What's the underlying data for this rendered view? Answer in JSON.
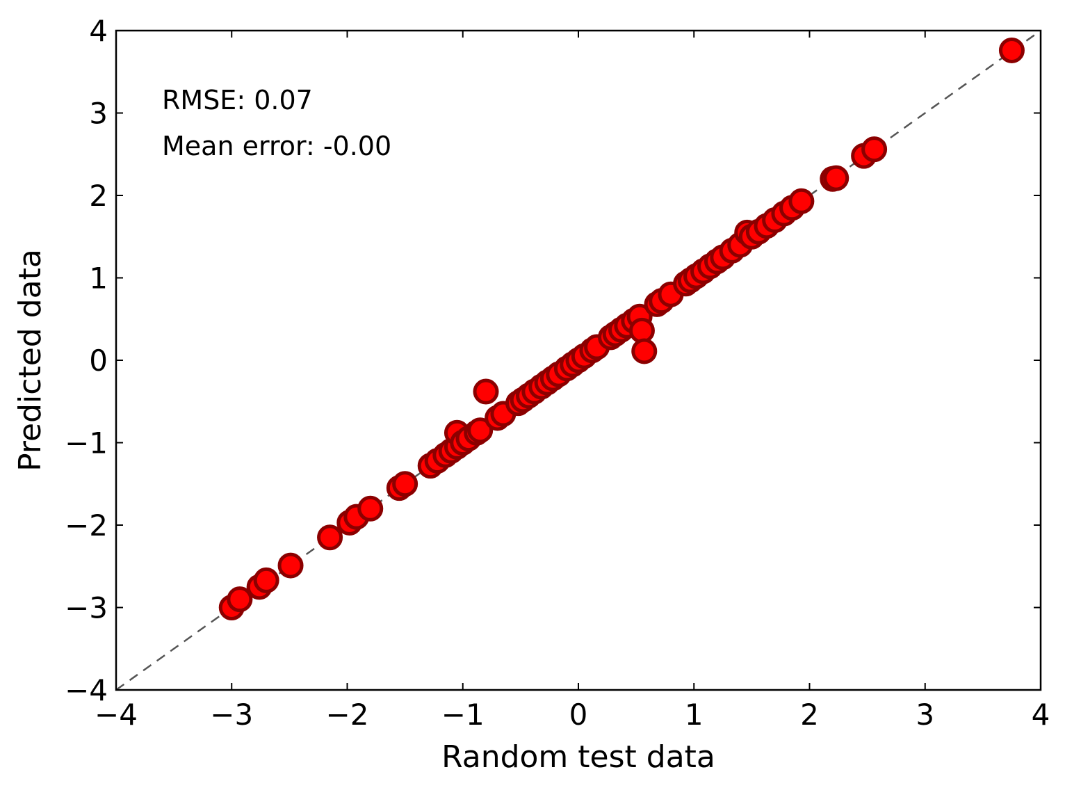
{
  "chart_data": {
    "type": "scatter",
    "xlabel": "Random test data",
    "ylabel": "Predicted data",
    "xlim": [
      -4,
      4
    ],
    "ylim": [
      -4,
      4
    ],
    "xticks": [
      "−4",
      "−3",
      "−2",
      "−1",
      "0",
      "1",
      "2",
      "3",
      "4"
    ],
    "yticks": [
      "−4",
      "−3",
      "−2",
      "−1",
      "0",
      "1",
      "2",
      "3",
      "4"
    ],
    "tick_values": [
      -4,
      -3,
      -2,
      -1,
      0,
      1,
      2,
      3,
      4
    ],
    "grid": false,
    "annotations": [
      "RMSE: 0.07",
      "Mean error: -0.00"
    ],
    "reference_line": {
      "style": "dashed",
      "color": "#555555",
      "from": [
        -4,
        -4
      ],
      "to": [
        4,
        4
      ]
    },
    "marker": {
      "fill": "#ff0000",
      "edge": "#8b0000"
    },
    "points": [
      {
        "x": -3.0,
        "y": -3.0
      },
      {
        "x": -2.93,
        "y": -2.9
      },
      {
        "x": -2.76,
        "y": -2.75
      },
      {
        "x": -2.7,
        "y": -2.67
      },
      {
        "x": -2.49,
        "y": -2.49
      },
      {
        "x": -2.15,
        "y": -2.15
      },
      {
        "x": -1.98,
        "y": -1.97
      },
      {
        "x": -1.92,
        "y": -1.9
      },
      {
        "x": -1.8,
        "y": -1.8
      },
      {
        "x": -1.55,
        "y": -1.55
      },
      {
        "x": -1.5,
        "y": -1.5
      },
      {
        "x": -1.28,
        "y": -1.28
      },
      {
        "x": -1.22,
        "y": -1.22
      },
      {
        "x": -1.15,
        "y": -1.15
      },
      {
        "x": -1.1,
        "y": -1.1
      },
      {
        "x": -1.05,
        "y": -1.05
      },
      {
        "x": -1.05,
        "y": -0.88
      },
      {
        "x": -1.0,
        "y": -1.0
      },
      {
        "x": -0.95,
        "y": -0.95
      },
      {
        "x": -0.88,
        "y": -0.88
      },
      {
        "x": -0.85,
        "y": -0.85
      },
      {
        "x": -0.8,
        "y": -0.38
      },
      {
        "x": -0.7,
        "y": -0.7
      },
      {
        "x": -0.65,
        "y": -0.65
      },
      {
        "x": -0.52,
        "y": -0.52
      },
      {
        "x": -0.48,
        "y": -0.48
      },
      {
        "x": -0.43,
        "y": -0.43
      },
      {
        "x": -0.38,
        "y": -0.38
      },
      {
        "x": -0.32,
        "y": -0.32
      },
      {
        "x": -0.27,
        "y": -0.27
      },
      {
        "x": -0.22,
        "y": -0.22
      },
      {
        "x": -0.17,
        "y": -0.17
      },
      {
        "x": -0.1,
        "y": -0.1
      },
      {
        "x": -0.05,
        "y": -0.05
      },
      {
        "x": 0.0,
        "y": 0.0
      },
      {
        "x": 0.05,
        "y": 0.05
      },
      {
        "x": 0.12,
        "y": 0.12
      },
      {
        "x": 0.16,
        "y": 0.16
      },
      {
        "x": 0.28,
        "y": 0.28
      },
      {
        "x": 0.32,
        "y": 0.32
      },
      {
        "x": 0.37,
        "y": 0.37
      },
      {
        "x": 0.42,
        "y": 0.42
      },
      {
        "x": 0.48,
        "y": 0.48
      },
      {
        "x": 0.53,
        "y": 0.53
      },
      {
        "x": 0.55,
        "y": 0.36
      },
      {
        "x": 0.57,
        "y": 0.11
      },
      {
        "x": 0.68,
        "y": 0.68
      },
      {
        "x": 0.72,
        "y": 0.72
      },
      {
        "x": 0.8,
        "y": 0.8
      },
      {
        "x": 0.93,
        "y": 0.93
      },
      {
        "x": 0.97,
        "y": 0.97
      },
      {
        "x": 1.02,
        "y": 1.02
      },
      {
        "x": 1.08,
        "y": 1.08
      },
      {
        "x": 1.14,
        "y": 1.14
      },
      {
        "x": 1.2,
        "y": 1.2
      },
      {
        "x": 1.25,
        "y": 1.25
      },
      {
        "x": 1.33,
        "y": 1.33
      },
      {
        "x": 1.4,
        "y": 1.4
      },
      {
        "x": 1.46,
        "y": 1.55
      },
      {
        "x": 1.5,
        "y": 1.5
      },
      {
        "x": 1.56,
        "y": 1.56
      },
      {
        "x": 1.63,
        "y": 1.63
      },
      {
        "x": 1.7,
        "y": 1.7
      },
      {
        "x": 1.78,
        "y": 1.78
      },
      {
        "x": 1.85,
        "y": 1.85
      },
      {
        "x": 1.93,
        "y": 1.93
      },
      {
        "x": 2.2,
        "y": 2.2
      },
      {
        "x": 2.23,
        "y": 2.21
      },
      {
        "x": 2.47,
        "y": 2.48
      },
      {
        "x": 2.56,
        "y": 2.56
      },
      {
        "x": 3.75,
        "y": 3.76
      }
    ]
  }
}
